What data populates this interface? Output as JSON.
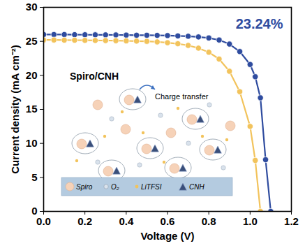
{
  "chart_data": {
    "type": "line",
    "x_label": "Voltage (V)",
    "y_label": "Current density (mA cm⁻²)",
    "x": [
      0,
      0.05,
      0.1,
      0.15,
      0.2,
      0.25,
      0.3,
      0.35,
      0.4,
      0.45,
      0.5,
      0.55,
      0.6,
      0.65,
      0.7,
      0.75,
      0.8,
      0.85,
      0.9,
      0.95,
      1.0,
      1.025,
      1.05,
      1.075,
      1.1
    ],
    "series": [
      {
        "color": "#2f4c9f",
        "marker": "circle",
        "line_style": "solid",
        "values": [
          26.0,
          26.0,
          26.0,
          25.98,
          25.97,
          25.96,
          25.95,
          25.94,
          25.92,
          25.9,
          25.9,
          25.88,
          25.85,
          25.8,
          25.75,
          25.65,
          25.5,
          25.2,
          24.6,
          23.5,
          21.6,
          19.8,
          16.7,
          7.6,
          0
        ]
      },
      {
        "color": "#f2c35c",
        "marker": "circle",
        "line_style": "solid",
        "values": [
          25.2,
          25.2,
          25.18,
          25.17,
          25.15,
          25.13,
          25.12,
          25.1,
          25.07,
          25.04,
          25.0,
          24.92,
          24.8,
          24.65,
          24.4,
          24.0,
          23.4,
          22.4,
          20.6,
          17.6,
          12.5,
          7.5,
          0,
          null,
          null
        ]
      }
    ],
    "xlim": [
      0,
      1.2
    ],
    "xticks": [
      {
        "value": 0,
        "label": "0.0"
      },
      {
        "value": 0.2,
        "label": "0.2"
      },
      {
        "value": 0.4,
        "label": "0.4"
      },
      {
        "value": 0.6,
        "label": "0.6"
      },
      {
        "value": 0.8,
        "label": "0.8"
      },
      {
        "value": 1.0,
        "label": "1.0"
      },
      {
        "value": 1.2,
        "label": "1.2"
      }
    ],
    "ylim": [
      0,
      30
    ],
    "yticks": [
      0,
      5,
      10,
      15,
      20,
      25,
      30
    ],
    "grid": false,
    "annotations": {
      "efficiency": "23.24%",
      "inset_title": "Spiro/CNH",
      "inset_label": "Charge transfer",
      "inset_legend": [
        "Spiro",
        "O₂",
        "LiTFSI",
        "CNH"
      ]
    }
  }
}
